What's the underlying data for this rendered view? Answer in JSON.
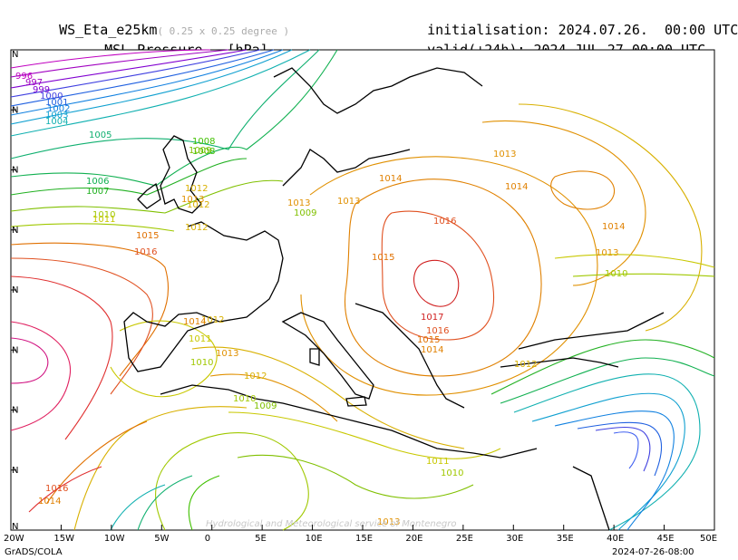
{
  "header": {
    "model": "WS_Eta_e25km",
    "resolution": "( 0.25 x 0.25 degree )",
    "field": "MSL Pressure",
    "unit": "[hPa]",
    "init_label": "initialisation:",
    "init_value": "2024.07.26.  00:00 UTC",
    "valid_label": "valid(+24h):",
    "valid_value": "2024.JUL.27 00:00 UTC"
  },
  "map": {
    "x_tick_labels": [
      "20W",
      "15W",
      "10W",
      "5W",
      "0",
      "5E",
      "10E",
      "15E",
      "20E",
      "25E",
      "30E",
      "35E",
      "40E",
      "45E",
      "50E"
    ],
    "y_tick_labels": [
      "N",
      "N",
      "N",
      "N",
      "N",
      "N",
      "N",
      "N",
      "N"
    ],
    "watermark": "Hydrological and Meteorological service of Montenegro"
  },
  "footer": {
    "left": "GrADS/COLA",
    "right": "2024-07-26-08:00"
  },
  "chart_data": {
    "type": "contour",
    "variable": "MSL Pressure",
    "unit": "hPa",
    "x_range": [
      "20W",
      "50E"
    ],
    "contour_labels": [
      {
        "value": "996",
        "color": "#c000c0"
      },
      {
        "value": "997",
        "color": "#a000c0"
      },
      {
        "value": "999",
        "color": "#8000d0"
      },
      {
        "value": "1000",
        "color": "#4040e0"
      },
      {
        "value": "1001",
        "color": "#2060e0"
      },
      {
        "value": "1002",
        "color": "#1080e0"
      },
      {
        "value": "1003",
        "color": "#10a0d0"
      },
      {
        "value": "1004",
        "color": "#10b0b0"
      },
      {
        "value": "1005",
        "color": "#10b070"
      },
      {
        "value": "1006",
        "color": "#10b050"
      },
      {
        "value": "1007",
        "color": "#20b020"
      },
      {
        "value": "1008",
        "color": "#40c000"
      },
      {
        "value": "1008",
        "color": "#40c000"
      },
      {
        "value": "1009",
        "color": "#80c000"
      },
      {
        "value": "1009",
        "color": "#80c000"
      },
      {
        "value": "1009",
        "color": "#80c000"
      },
      {
        "value": "1010",
        "color": "#a0c800"
      },
      {
        "value": "1010",
        "color": "#a0c800"
      },
      {
        "value": "1010",
        "color": "#a0c800"
      },
      {
        "value": "1010",
        "color": "#a0c800"
      },
      {
        "value": "1010",
        "color": "#a0c800"
      },
      {
        "value": "1011",
        "color": "#c8c800"
      },
      {
        "value": "1011",
        "color": "#c8c800"
      },
      {
        "value": "1011",
        "color": "#c8c800"
      },
      {
        "value": "1012",
        "color": "#d8b000"
      },
      {
        "value": "1012",
        "color": "#d8b000"
      },
      {
        "value": "1012",
        "color": "#d8b000"
      },
      {
        "value": "1012",
        "color": "#d8b000"
      },
      {
        "value": "1012",
        "color": "#d8b000"
      },
      {
        "value": "1012",
        "color": "#d8b000"
      },
      {
        "value": "1013",
        "color": "#e09000"
      },
      {
        "value": "1013",
        "color": "#e09000"
      },
      {
        "value": "1013",
        "color": "#e09000"
      },
      {
        "value": "1013",
        "color": "#e09000"
      },
      {
        "value": "1013",
        "color": "#e09000"
      },
      {
        "value": "1013",
        "color": "#e09000"
      },
      {
        "value": "1013",
        "color": "#e09000"
      },
      {
        "value": "1014",
        "color": "#e08000"
      },
      {
        "value": "1014",
        "color": "#e08000"
      },
      {
        "value": "1014",
        "color": "#e08000"
      },
      {
        "value": "1014",
        "color": "#e08000"
      },
      {
        "value": "1014",
        "color": "#e08000"
      },
      {
        "value": "1014",
        "color": "#e08000"
      },
      {
        "value": "1015",
        "color": "#e07000"
      },
      {
        "value": "1015",
        "color": "#e07000"
      },
      {
        "value": "1015",
        "color": "#e07000"
      },
      {
        "value": "1016",
        "color": "#e05020"
      },
      {
        "value": "1016",
        "color": "#e05020"
      },
      {
        "value": "1016",
        "color": "#e05020"
      },
      {
        "value": "1016",
        "color": "#e05020"
      },
      {
        "value": "1017",
        "color": "#d02020"
      }
    ]
  }
}
